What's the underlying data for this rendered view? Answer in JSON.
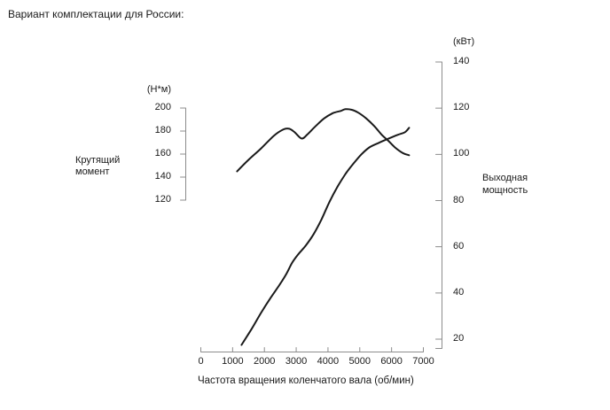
{
  "page": {
    "title": "Вариант комплектации для России:"
  },
  "colors": {
    "curve": "#1a1a1a",
    "axis": "#8c8c8c",
    "text": "#1a1a1a",
    "background": "#ffffff"
  },
  "chart_data": {
    "type": "line",
    "title": "Вариант комплектации для России:",
    "grid": false,
    "legend_position": "none",
    "x_axis": {
      "label": "Частота вращения коленчатого вала (об/мин)",
      "ticks": [
        0,
        1000,
        2000,
        3000,
        4000,
        5000,
        6000,
        7000
      ],
      "range": [
        0,
        7000
      ]
    },
    "left_axis": {
      "name": "Крутящий момент",
      "name_lines": [
        "Крутящий",
        "момент"
      ],
      "unit": "(Н*м)",
      "ticks": [
        200,
        180,
        160,
        140,
        120
      ],
      "range": [
        120,
        200
      ]
    },
    "right_axis": {
      "name": "Выходная мощность",
      "name_lines": [
        "Выходная",
        "мощность"
      ],
      "unit": "(кВт)",
      "ticks": [
        140,
        120,
        100,
        80,
        60,
        40,
        20
      ],
      "range": [
        20,
        140
      ]
    },
    "series": [
      {
        "name": "Крутящий момент",
        "axis": "left",
        "units": "Н*м",
        "points": [
          [
            1140,
            145
          ],
          [
            1500,
            155
          ],
          [
            1900,
            165
          ],
          [
            2300,
            176
          ],
          [
            2600,
            181.5
          ],
          [
            2780,
            182
          ],
          [
            2950,
            179
          ],
          [
            3170,
            173.5
          ],
          [
            3350,
            177
          ],
          [
            3600,
            184
          ],
          [
            3880,
            191
          ],
          [
            4150,
            195.5
          ],
          [
            4400,
            197.5
          ],
          [
            4550,
            199
          ],
          [
            4750,
            198.5
          ],
          [
            4950,
            196
          ],
          [
            5200,
            191
          ],
          [
            5450,
            184.5
          ],
          [
            5700,
            176.5
          ],
          [
            5900,
            171.5
          ],
          [
            6100,
            166
          ],
          [
            6350,
            161
          ],
          [
            6550,
            159
          ]
        ]
      },
      {
        "name": "Выходная мощность",
        "axis": "right",
        "units": "кВт",
        "points": [
          [
            1280,
            17.5
          ],
          [
            1600,
            24.5
          ],
          [
            1900,
            31.5
          ],
          [
            2200,
            38
          ],
          [
            2500,
            44
          ],
          [
            2700,
            48.5
          ],
          [
            2870,
            53
          ],
          [
            3050,
            56.5
          ],
          [
            3300,
            60.5
          ],
          [
            3550,
            65.5
          ],
          [
            3800,
            72
          ],
          [
            4050,
            79.5
          ],
          [
            4300,
            86
          ],
          [
            4550,
            91.5
          ],
          [
            4800,
            96
          ],
          [
            5050,
            100
          ],
          [
            5300,
            103
          ],
          [
            5600,
            105
          ],
          [
            5900,
            106.8
          ],
          [
            6200,
            108.5
          ],
          [
            6420,
            109.6
          ],
          [
            6550,
            111.5
          ]
        ]
      }
    ]
  }
}
